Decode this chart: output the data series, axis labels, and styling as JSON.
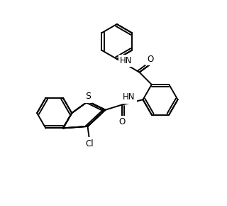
{
  "background_color": "#ffffff",
  "line_color": "#000000",
  "line_width": 1.4,
  "font_size": 8.5,
  "figsize": [
    3.2,
    2.9
  ],
  "dpi": 100,
  "xlim": [
    0,
    10
  ],
  "ylim": [
    0,
    9
  ]
}
